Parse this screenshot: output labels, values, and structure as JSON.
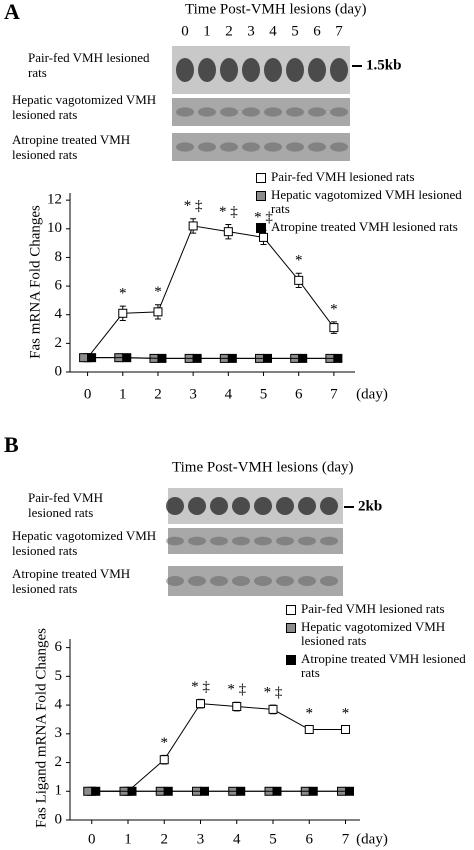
{
  "chart_data": [
    {
      "type": "line",
      "panel_label": "A",
      "blot_title": "Time Post-VMH lesions (day)",
      "lanes": [
        "0",
        "1",
        "2",
        "3",
        "4",
        "5",
        "6",
        "7"
      ],
      "blot_rows": [
        "Pair-fed VMH lesioned rats",
        "Hepatic vagotomized VMH lesioned rats",
        "Atropine treated VMH lesioned rats"
      ],
      "size_marker": "1.5kb",
      "y_label": "Fas mRNA Fold Changes",
      "x_unit": "(day)",
      "x": [
        0,
        1,
        2,
        3,
        4,
        5,
        6,
        7
      ],
      "xlim": [
        -0.5,
        7.6
      ],
      "xticks": [
        0,
        1,
        2,
        3,
        4,
        5,
        6,
        7
      ],
      "ylim": [
        0,
        12.5
      ],
      "yticks": [
        0,
        2,
        4,
        6,
        8,
        10,
        12
      ],
      "series": [
        {
          "name": "Pair-fed VMH lesioned rats",
          "color": "#ffffff",
          "values": [
            1,
            4.1,
            4.2,
            10.2,
            9.8,
            9.4,
            6.4,
            3.1
          ],
          "errors": [
            0.1,
            0.5,
            0.5,
            0.5,
            0.5,
            0.5,
            0.5,
            0.4
          ]
        },
        {
          "name": "Hepatic vagotomized VMH lesioned rats",
          "color": "#8c8c8c",
          "values": [
            1,
            1,
            0.95,
            0.95,
            0.95,
            0.95,
            0.95,
            0.95
          ]
        },
        {
          "name": "Atropine treated VMH lesioned rats",
          "color": "#000000",
          "values": [
            1,
            1,
            0.95,
            0.95,
            0.95,
            0.95,
            0.95,
            0.95
          ]
        }
      ],
      "annotations": [
        {
          "x": 1,
          "text": "*"
        },
        {
          "x": 2,
          "text": "*"
        },
        {
          "x": 3,
          "text": "* ‡"
        },
        {
          "x": 4,
          "text": "* ‡"
        },
        {
          "x": 5,
          "text": "* ‡"
        },
        {
          "x": 6,
          "text": "*"
        },
        {
          "x": 7,
          "text": "*"
        }
      ]
    },
    {
      "type": "line",
      "panel_label": "B",
      "blot_title": "Time Post-VMH lesions (day)",
      "lanes": [
        "0",
        "1",
        "2",
        "3",
        "4",
        "5",
        "6",
        "7"
      ],
      "blot_rows": [
        "Pair-fed VMH lesioned rats",
        "Hepatic vagotomized VMH lesioned rats",
        "Atropine treated VMH lesioned rats"
      ],
      "size_marker": "2kb",
      "y_label": "Fas Ligand mRNA Fold Changes",
      "x_unit": "(day)",
      "x": [
        0,
        1,
        2,
        3,
        4,
        5,
        6,
        7
      ],
      "xlim": [
        -0.6,
        7.4
      ],
      "xticks": [
        0,
        1,
        2,
        3,
        4,
        5,
        6,
        7
      ],
      "ylim": [
        0,
        6.3
      ],
      "yticks": [
        0,
        1,
        2,
        3,
        4,
        5,
        6
      ],
      "series": [
        {
          "name": "Pair-fed VMH lesioned rats",
          "color": "#ffffff",
          "values": [
            1,
            1,
            2.1,
            4.05,
            3.95,
            3.85,
            3.15,
            3.15
          ],
          "errors": [
            0.05,
            0.05,
            0.15,
            0.15,
            0.15,
            0.15,
            0.12,
            0.12
          ]
        },
        {
          "name": "Hepatic vagotomized VMH lesioned rats",
          "color": "#8c8c8c",
          "values": [
            1,
            1,
            1,
            1,
            1,
            1,
            1,
            1
          ]
        },
        {
          "name": "Atropine treated VMH lesioned rats",
          "color": "#000000",
          "values": [
            1,
            1,
            1,
            1,
            1,
            1,
            1,
            1
          ]
        }
      ],
      "annotations": [
        {
          "x": 2,
          "text": "*"
        },
        {
          "x": 3,
          "text": "* ‡"
        },
        {
          "x": 4,
          "text": "* ‡"
        },
        {
          "x": 5,
          "text": "* ‡"
        },
        {
          "x": 6,
          "text": "*"
        },
        {
          "x": 7,
          "text": "*"
        }
      ]
    }
  ]
}
